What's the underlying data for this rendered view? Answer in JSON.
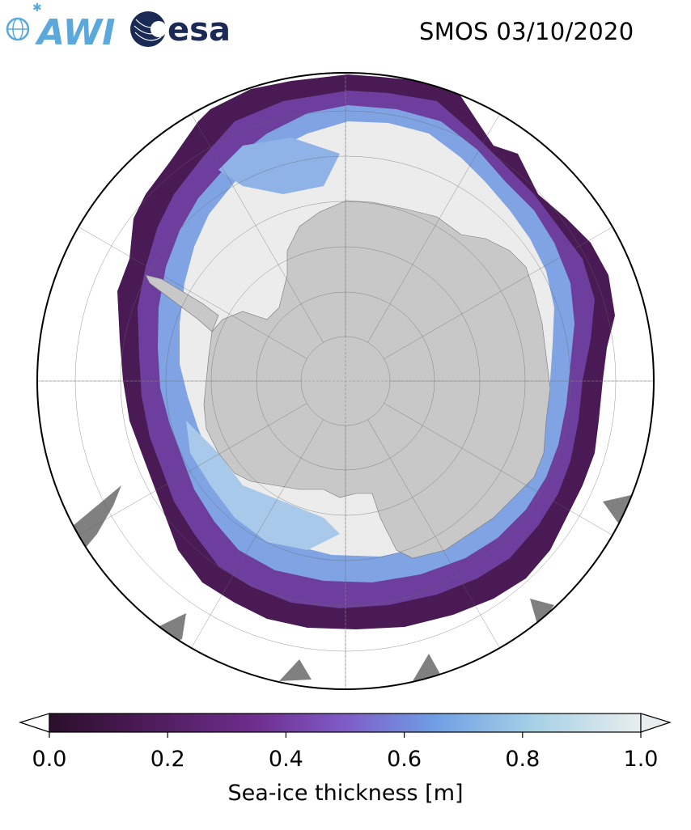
{
  "title": "SMOS 03/10/2020",
  "logos": {
    "awi_text": "AWI",
    "esa_text": "esa"
  },
  "map": {
    "projection": "south-polar-stereographic",
    "variable": "sea-ice thickness",
    "land_color": "#c8c8c8",
    "ocean_color": "#ffffff",
    "outside_land_color": "#808080",
    "gridlines": true
  },
  "colorbar": {
    "label": "Sea-ice thickness [m]",
    "ticks": [
      "0.0",
      "0.2",
      "0.4",
      "0.6",
      "0.8",
      "1.0"
    ],
    "range": [
      0.0,
      1.0
    ],
    "extend": "both",
    "colormap": [
      "#2a0f2a",
      "#4a1a55",
      "#6e2e8e",
      "#7f5cc8",
      "#6f9ee4",
      "#a6d1e6",
      "#e8eeee"
    ]
  }
}
